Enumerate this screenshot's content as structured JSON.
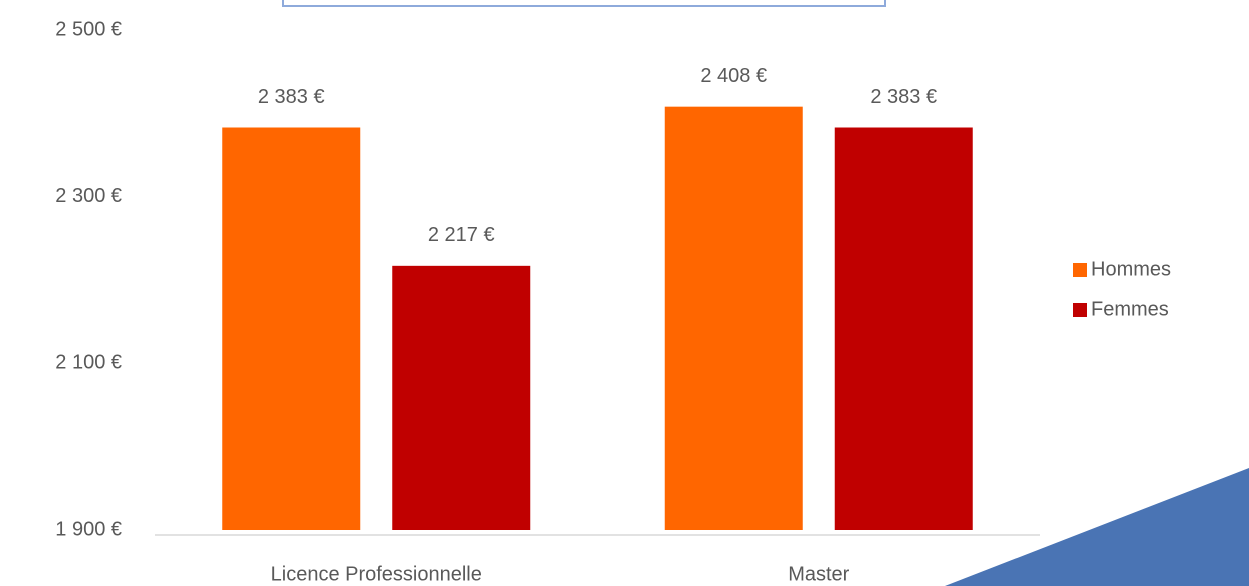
{
  "chart_data": {
    "type": "bar",
    "categories": [
      "Licence Professionnelle",
      "Master"
    ],
    "series": [
      {
        "name": "Hommes",
        "color": "#ff6600",
        "values": [
          2383,
          2408
        ],
        "value_labels": [
          "2 383 €",
          "2 408 €"
        ]
      },
      {
        "name": "Femmes",
        "color": "#c00000",
        "values": [
          2217,
          2383
        ],
        "value_labels": [
          "2 217 €",
          "2 383 €"
        ]
      }
    ],
    "ylim": [
      1900,
      2500
    ],
    "yticks": [
      {
        "value": 1900,
        "label": "1 900 €"
      },
      {
        "value": 2100,
        "label": "2 100 €"
      },
      {
        "value": 2300,
        "label": "2 300 €"
      },
      {
        "value": 2500,
        "label": "2 500 €"
      }
    ],
    "grid": false,
    "legend": "right"
  }
}
